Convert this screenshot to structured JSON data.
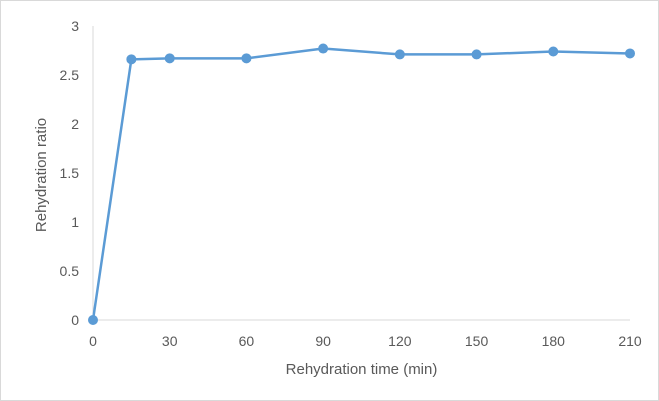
{
  "chart_data": {
    "type": "line",
    "title": "",
    "xlabel": "Rehydration time (min)",
    "ylabel": "Rehydration ratio",
    "x_ticks": [
      "0",
      "30",
      "60",
      "90",
      "120",
      "150",
      "180",
      "210"
    ],
    "y_ticks": [
      "0",
      "0.5",
      "1",
      "1.5",
      "2",
      "2.5",
      "3"
    ],
    "xlim": [
      0,
      210
    ],
    "ylim": [
      0,
      3
    ],
    "grid": false,
    "legend": "none",
    "series": [
      {
        "color": "#5b9bd5",
        "x": [
          0,
          15,
          30,
          60,
          90,
          120,
          150,
          180,
          210
        ],
        "y": [
          0,
          2.66,
          2.67,
          2.67,
          2.77,
          2.71,
          2.71,
          2.74,
          2.72
        ]
      }
    ]
  }
}
